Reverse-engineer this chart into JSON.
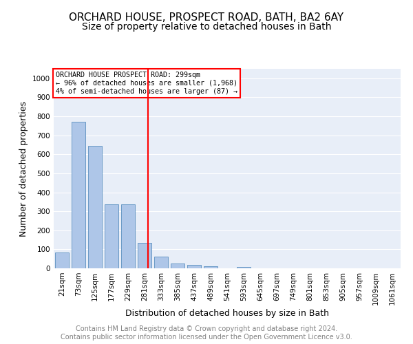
{
  "title1": "ORCHARD HOUSE, PROSPECT ROAD, BATH, BA2 6AY",
  "title2": "Size of property relative to detached houses in Bath",
  "xlabel": "Distribution of detached houses by size in Bath",
  "ylabel": "Number of detached properties",
  "bar_values": [
    83,
    770,
    643,
    335,
    335,
    133,
    62,
    25,
    17,
    10,
    0,
    8,
    0,
    0,
    0,
    0,
    0,
    0,
    0,
    0,
    0
  ],
  "bin_labels": [
    "21sqm",
    "73sqm",
    "125sqm",
    "177sqm",
    "229sqm",
    "281sqm",
    "333sqm",
    "385sqm",
    "437sqm",
    "489sqm",
    "541sqm",
    "593sqm",
    "645sqm",
    "697sqm",
    "749sqm",
    "801sqm",
    "853sqm",
    "905sqm",
    "957sqm",
    "1009sqm",
    "1061sqm"
  ],
  "bar_color": "#aec6e8",
  "bar_edge_color": "#5a8fc0",
  "vline_x": 5.22,
  "vline_color": "red",
  "annotation_text": "ORCHARD HOUSE PROSPECT ROAD: 299sqm\n← 96% of detached houses are smaller (1,968)\n4% of semi-detached houses are larger (87) →",
  "annotation_box_color": "white",
  "annotation_box_edge_color": "red",
  "ylim": [
    0,
    1050
  ],
  "yticks": [
    0,
    100,
    200,
    300,
    400,
    500,
    600,
    700,
    800,
    900,
    1000
  ],
  "background_color": "#e8eef8",
  "grid_color": "white",
  "footer": "Contains HM Land Registry data © Crown copyright and database right 2024.\nContains public sector information licensed under the Open Government Licence v3.0.",
  "title1_fontsize": 11,
  "title2_fontsize": 10,
  "xlabel_fontsize": 9,
  "ylabel_fontsize": 9,
  "footer_fontsize": 7,
  "tick_fontsize": 7.5
}
